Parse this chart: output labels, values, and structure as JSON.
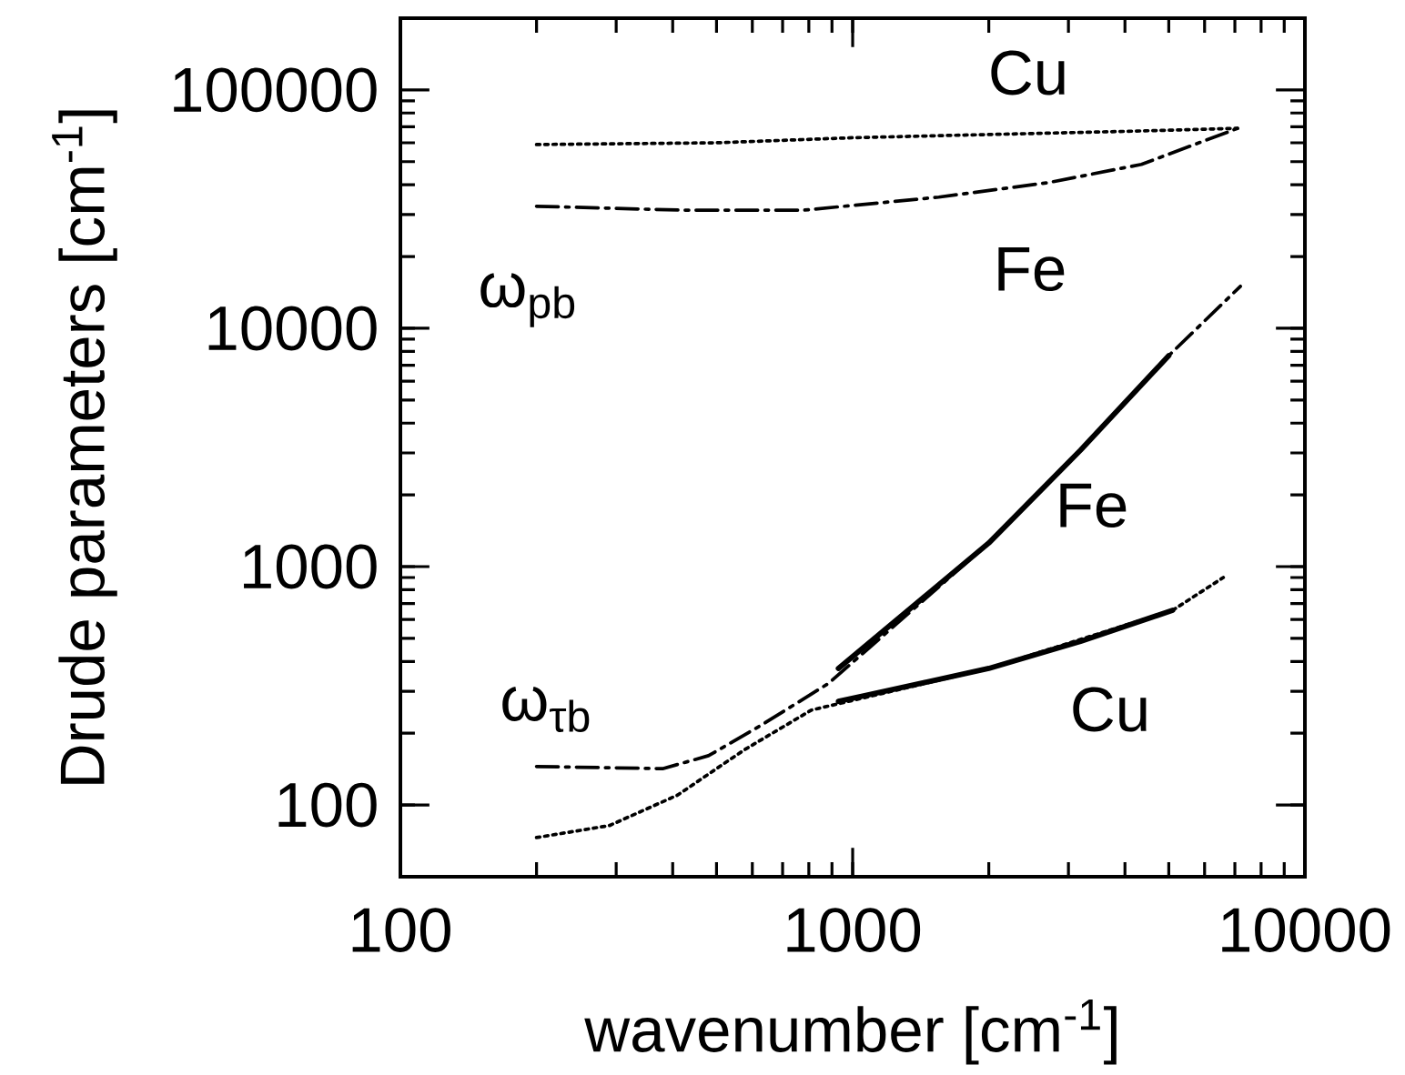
{
  "chart_data": {
    "type": "line",
    "xlabel": "wavenumber [cm$^{-1}$]",
    "ylabel": "Drude parameters [cm$^{-1}$]",
    "log": "xy",
    "xlim": [
      100,
      10000
    ],
    "ylim": [
      50,
      200000
    ],
    "xticks": [
      100,
      1000,
      10000
    ],
    "yticks": [
      100,
      1000,
      10000,
      100000
    ],
    "series": [
      {
        "color": "#000000",
        "line_style": "dotted",
        "x": [
          200,
          500,
          1000,
          2000,
          4000,
          7100
        ],
        "values": [
          59000,
          60000,
          63000,
          65000,
          67000,
          69000
        ]
      },
      {
        "color": "#000000",
        "line_style": "dashdot",
        "x": [
          200,
          420,
          780,
          1550,
          2720,
          4350,
          7100
        ],
        "values": [
          32500,
          31300,
          31300,
          35500,
          40900,
          48700,
          69000
        ]
      },
      {
        "color": "#000000",
        "line_style": "dotted",
        "x": [
          200,
          290,
          410,
          575,
          810,
          2000,
          5100,
          6600
        ],
        "values": [
          73,
          82,
          110,
          170,
          250,
          374,
          656,
          900
        ]
      },
      {
        "color": "#000000",
        "line_style": "solid",
        "x": [
          930,
          2000,
          3190,
          5100
        ],
        "values": [
          272,
          374,
          486,
          656
        ]
      },
      {
        "color": "#000000",
        "line_style": "dashdot",
        "x": [
          200,
          380,
          480,
          630,
          885,
          2000,
          3190,
          5000,
          7200
        ],
        "values": [
          145,
          142,
          161,
          217,
          324,
          1256,
          3080,
          7680,
          15000
        ]
      },
      {
        "color": "#000000",
        "line_style": "solid",
        "x": [
          930,
          2000,
          3190,
          5000
        ],
        "values": [
          374,
          1256,
          3080,
          7680
        ]
      }
    ],
    "annotations": [
      "Cu",
      "Fe",
      "ω$_{pb}$",
      "Fe",
      "Cu",
      "ω$_{τb}$"
    ]
  }
}
